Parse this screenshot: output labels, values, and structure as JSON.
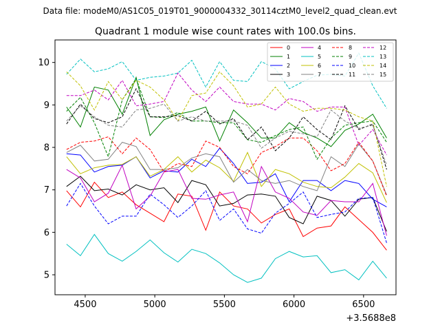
{
  "figure": {
    "suptitle": "Data file: modeM0/AS1C05_019T01_9000004332_30114cztM0_level2_quad_clean.evt"
  },
  "chart_data": {
    "type": "line",
    "title": "Quadrant 1 module wise count rates with 100.0s bins.",
    "xlabel": "",
    "ylabel": "",
    "x_offset_label": "+3.5688e8",
    "xlim": [
      4283,
      6733
    ],
    "ylim": [
      4.53,
      10.53
    ],
    "xticks": [
      4500,
      5000,
      5500,
      6000,
      6500
    ],
    "xtick_labels": [
      "4500",
      "5000",
      "5500",
      "6000",
      "6500"
    ],
    "yticks": [
      5,
      6,
      7,
      8,
      9,
      10
    ],
    "ytick_labels": [
      "5",
      "6",
      "7",
      "8",
      "9",
      "10"
    ],
    "grid": false,
    "legend_position": "top-right",
    "legend_columns": 4,
    "x": [
      4366,
      4466,
      4566,
      4666,
      4766,
      4866,
      4966,
      5066,
      5166,
      5266,
      5366,
      5466,
      5566,
      5666,
      5766,
      5866,
      5966,
      6066,
      6166,
      6266,
      6366,
      6466,
      6566,
      6666
    ],
    "series": [
      {
        "name": "0",
        "color": "#ff0000",
        "dash": "solid",
        "values": [
          6.98,
          6.6,
          7.18,
          6.82,
          6.95,
          6.65,
          6.45,
          6.25,
          6.9,
          6.85,
          6.05,
          6.95,
          6.62,
          6.55,
          6.22,
          6.42,
          6.55,
          5.9,
          6.1,
          6.15,
          6.6,
          6.3,
          6.0,
          5.58
        ]
      },
      {
        "name": "1",
        "color": "#008000",
        "dash": "solid",
        "values": [
          8.95,
          8.48,
          9.42,
          9.35,
          8.78,
          9.65,
          8.28,
          8.65,
          8.78,
          8.85,
          8.95,
          8.15,
          8.88,
          8.58,
          8.22,
          8.22,
          8.58,
          8.35,
          8.22,
          8.02,
          8.4,
          8.55,
          8.78,
          8.22
        ]
      },
      {
        "name": "2",
        "color": "#0000ff",
        "dash": "solid",
        "values": [
          7.85,
          7.82,
          7.42,
          7.55,
          7.58,
          7.78,
          7.28,
          7.45,
          7.42,
          7.72,
          7.55,
          7.98,
          7.62,
          7.15,
          7.18,
          7.38,
          6.72,
          7.22,
          7.22,
          6.98,
          7.22,
          7.15,
          6.78,
          6.6
        ]
      },
      {
        "name": "3",
        "color": "#000000",
        "dash": "solid",
        "values": [
          7.08,
          7.32,
          6.98,
          7.02,
          6.88,
          7.12,
          7.0,
          7.05,
          6.7,
          7.22,
          7.12,
          6.62,
          6.68,
          6.88,
          6.9,
          6.85,
          6.35,
          6.2,
          6.85,
          6.75,
          6.38,
          6.78,
          6.82,
          6.02
        ]
      },
      {
        "name": "4",
        "color": "#c000c0",
        "dash": "solid",
        "values": [
          7.48,
          7.28,
          6.72,
          6.92,
          7.58,
          6.55,
          6.85,
          7.42,
          7.48,
          6.8,
          6.78,
          6.88,
          6.95,
          6.25,
          7.55,
          6.95,
          6.8,
          6.48,
          6.4,
          6.75,
          6.72,
          6.72,
          7.15,
          5.92
        ]
      },
      {
        "name": "5",
        "color": "#00c0c0",
        "dash": "solid",
        "values": [
          5.72,
          5.45,
          5.95,
          5.5,
          5.32,
          5.55,
          5.82,
          5.52,
          5.3,
          5.6,
          5.5,
          5.28,
          5.0,
          4.82,
          4.92,
          5.38,
          5.55,
          5.42,
          5.45,
          5.05,
          5.12,
          4.88,
          5.32,
          4.92
        ]
      },
      {
        "name": "6",
        "color": "#c0c000",
        "dash": "solid",
        "values": [
          7.78,
          7.38,
          7.52,
          7.58,
          7.6,
          7.78,
          7.32,
          7.48,
          7.78,
          7.42,
          7.7,
          7.52,
          7.2,
          7.88,
          7.08,
          7.48,
          7.38,
          7.18,
          7.08,
          7.05,
          7.3,
          7.62,
          7.4,
          6.7
        ]
      },
      {
        "name": "7",
        "color": "#808080",
        "dash": "solid",
        "values": [
          7.88,
          8.05,
          7.68,
          7.72,
          8.12,
          8.02,
          7.48,
          7.48,
          7.52,
          7.75,
          7.85,
          7.78,
          7.18,
          7.48,
          7.22,
          7.15,
          7.22,
          7.08,
          6.98,
          7.78,
          7.55,
          8.08,
          7.68,
          6.88
        ]
      },
      {
        "name": "8",
        "color": "#ff0000",
        "dash": "dashed",
        "values": [
          7.95,
          8.12,
          8.15,
          8.25,
          7.85,
          8.22,
          7.95,
          7.42,
          7.62,
          7.55,
          8.15,
          8.0,
          7.55,
          7.38,
          7.88,
          8.02,
          8.22,
          8.22,
          7.92,
          7.45,
          7.62,
          8.12,
          7.68,
          6.85
        ]
      },
      {
        "name": "9",
        "color": "#008000",
        "dash": "dashed",
        "values": [
          8.85,
          9.18,
          8.58,
          7.78,
          9.12,
          9.62,
          8.72,
          8.7,
          8.82,
          8.62,
          8.62,
          8.58,
          8.58,
          8.18,
          8.12,
          8.28,
          8.42,
          8.48,
          7.72,
          8.22,
          8.52,
          8.58,
          8.62,
          8.12
        ]
      },
      {
        "name": "10",
        "color": "#0000ff",
        "dash": "dashed",
        "values": [
          6.62,
          7.15,
          6.62,
          6.2,
          6.38,
          6.38,
          6.9,
          6.65,
          6.35,
          6.62,
          6.98,
          6.28,
          6.55,
          6.08,
          5.98,
          6.45,
          6.68,
          6.95,
          6.35,
          6.42,
          6.48,
          6.8,
          6.82,
          5.75
        ]
      },
      {
        "name": "11",
        "color": "#000000",
        "dash": "dashed",
        "values": [
          8.55,
          9.02,
          8.68,
          8.58,
          8.72,
          9.38,
          8.72,
          8.72,
          8.75,
          8.62,
          8.85,
          8.55,
          8.68,
          8.18,
          8.48,
          7.92,
          8.22,
          8.72,
          8.42,
          8.18,
          8.98,
          8.42,
          8.55,
          7.48
        ]
      },
      {
        "name": "12",
        "color": "#c000c0",
        "dash": "dashed",
        "values": [
          9.22,
          9.22,
          9.35,
          9.12,
          9.58,
          8.98,
          9.02,
          9.08,
          9.75,
          9.35,
          9.08,
          9.42,
          9.08,
          9.02,
          9.02,
          8.88,
          9.15,
          9.08,
          8.85,
          8.95,
          8.95,
          8.05,
          8.42,
          7.82
        ]
      },
      {
        "name": "13",
        "color": "#00c0c0",
        "dash": "dashed",
        "values": [
          9.72,
          10.08,
          9.78,
          9.85,
          10.02,
          9.58,
          9.65,
          9.68,
          9.75,
          10.05,
          9.42,
          10.02,
          9.58,
          9.55,
          10.02,
          9.85,
          9.38,
          9.55,
          9.7,
          9.72,
          9.68,
          10.22,
          9.45,
          8.92
        ]
      },
      {
        "name": "14",
        "color": "#c0c000",
        "dash": "dashed",
        "values": [
          9.78,
          9.45,
          8.88,
          9.55,
          9.12,
          9.58,
          9.42,
          9.12,
          8.62,
          9.22,
          9.28,
          9.78,
          9.45,
          8.95,
          9.02,
          9.42,
          9.02,
          8.85,
          8.92,
          8.92,
          8.88,
          8.72,
          8.62,
          7.08
        ]
      },
      {
        "name": "15",
        "color": "#808080",
        "dash": "dashed",
        "values": [
          8.62,
          8.98,
          8.72,
          8.52,
          8.48,
          8.88,
          8.92,
          9.02,
          8.62,
          8.72,
          8.62,
          8.62,
          8.62,
          8.52,
          7.98,
          8.22,
          8.38,
          8.32,
          8.25,
          8.88,
          8.62,
          8.45,
          8.52,
          7.58
        ]
      }
    ]
  }
}
